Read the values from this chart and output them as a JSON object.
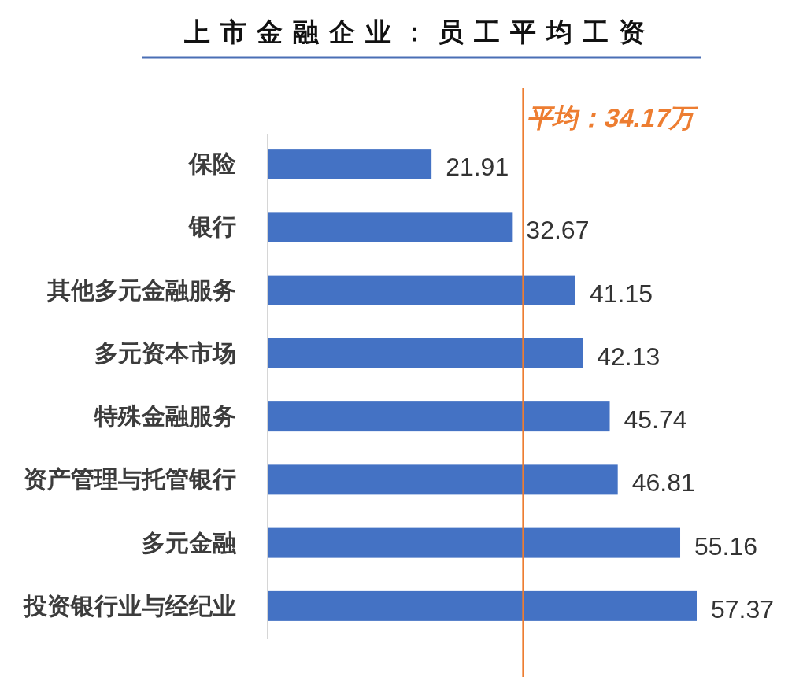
{
  "chart_data": {
    "type": "bar",
    "orientation": "horizontal",
    "title": "上市金融企业：员工平均工资",
    "categories": [
      "保险",
      "银行",
      "其他多元金融服务",
      "多元资本市场",
      "特殊金融服务",
      "资产管理与托管银行",
      "多元金融",
      "投资银行业与经纪业"
    ],
    "values": [
      21.91,
      32.67,
      41.15,
      42.13,
      45.74,
      46.81,
      55.16,
      57.37
    ],
    "color": "#4472c4",
    "data_labels": true,
    "ref_lines": [
      {
        "axis": "x",
        "value": 34.17,
        "label": "平均：34.17万",
        "color": "#ed7d31"
      }
    ],
    "grid": false,
    "legend": false
  }
}
